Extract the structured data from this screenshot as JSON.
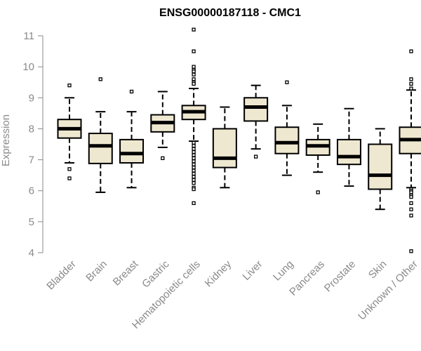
{
  "chart_data": {
    "type": "box",
    "title": "ENSG00000187118 - CMC1",
    "xlabel": "",
    "ylabel": "Expression",
    "ylim": [
      4,
      11
    ],
    "yticks": [
      4,
      5,
      6,
      7,
      8,
      9,
      10,
      11
    ],
    "grid": false,
    "legend": "none",
    "categories": [
      "Bladder",
      "Brain",
      "Breast",
      "Gastric",
      "Hematopoietic cells",
      "Kidney",
      "Liver",
      "Lung",
      "Pancreas",
      "Prostate",
      "Skin",
      "Unknown / Other"
    ],
    "boxes": [
      {
        "whisker_low": 6.9,
        "q1": 7.7,
        "median": 8.0,
        "q3": 8.3,
        "whisker_high": 9.0,
        "outliers": [
          6.4,
          6.7,
          9.4
        ]
      },
      {
        "whisker_low": 5.95,
        "q1": 6.88,
        "median": 7.45,
        "q3": 7.85,
        "whisker_high": 8.55,
        "outliers": [
          9.6
        ]
      },
      {
        "whisker_low": 6.1,
        "q1": 6.9,
        "median": 7.2,
        "q3": 7.65,
        "whisker_high": 8.55,
        "outliers": [
          9.2
        ]
      },
      {
        "whisker_low": 7.4,
        "q1": 7.9,
        "median": 8.2,
        "q3": 8.45,
        "whisker_high": 9.2,
        "outliers": [
          7.05
        ]
      },
      {
        "whisker_low": 7.6,
        "q1": 8.3,
        "median": 8.55,
        "q3": 8.75,
        "whisker_high": 9.3,
        "outliers": [
          11.2,
          10.5,
          10.0,
          9.9,
          9.85,
          9.75,
          9.6,
          9.5,
          9.45,
          7.55,
          7.45,
          7.35,
          7.25,
          7.15,
          7.05,
          6.95,
          6.85,
          6.75,
          6.65,
          6.55,
          6.45,
          6.35,
          6.25,
          6.1,
          6.05,
          5.6
        ]
      },
      {
        "whisker_low": 6.1,
        "q1": 6.75,
        "median": 7.05,
        "q3": 8.0,
        "whisker_high": 8.7,
        "outliers": []
      },
      {
        "whisker_low": 7.35,
        "q1": 8.25,
        "median": 8.7,
        "q3": 9.0,
        "whisker_high": 9.4,
        "outliers": [
          7.1
        ]
      },
      {
        "whisker_low": 6.5,
        "q1": 7.2,
        "median": 7.55,
        "q3": 8.05,
        "whisker_high": 8.75,
        "outliers": [
          9.5
        ]
      },
      {
        "whisker_low": 6.6,
        "q1": 7.15,
        "median": 7.45,
        "q3": 7.65,
        "whisker_high": 8.15,
        "outliers": [
          5.95
        ]
      },
      {
        "whisker_low": 6.15,
        "q1": 6.85,
        "median": 7.1,
        "q3": 7.65,
        "whisker_high": 8.65,
        "outliers": []
      },
      {
        "whisker_low": 5.4,
        "q1": 6.05,
        "median": 6.5,
        "q3": 7.5,
        "whisker_high": 8.0,
        "outliers": []
      },
      {
        "whisker_low": 6.1,
        "q1": 7.2,
        "median": 7.65,
        "q3": 8.05,
        "whisker_high": 9.25,
        "outliers": [
          10.5,
          9.6,
          9.45,
          9.3,
          6.05,
          6.0,
          5.95,
          5.85,
          5.8,
          5.6,
          5.4,
          5.2,
          4.05
        ]
      }
    ],
    "colors": {
      "box_fill": "#efe8d0",
      "box_stroke": "#000000",
      "axis": "#8a8a8a",
      "text_muted": "#8a8a8a",
      "title": "#000000"
    }
  }
}
